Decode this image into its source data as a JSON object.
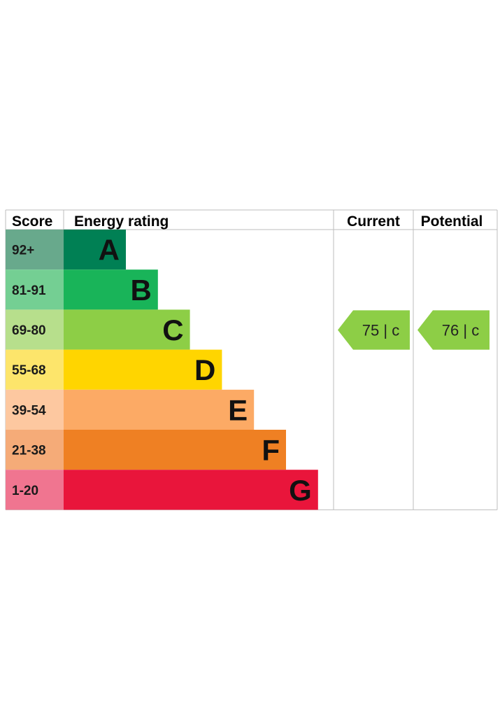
{
  "header": {
    "score": "Score",
    "rating": "Energy rating",
    "current": "Current",
    "potential": "Potential"
  },
  "chart_data": {
    "type": "bar",
    "bands": [
      {
        "letter": "A",
        "score": "92+",
        "color": "#008054",
        "light": "#68a98c"
      },
      {
        "letter": "B",
        "score": "81-91",
        "color": "#19b459",
        "light": "#74cf93"
      },
      {
        "letter": "C",
        "score": "69-80",
        "color": "#8dce46",
        "light": "#b7df8c"
      },
      {
        "letter": "D",
        "score": "55-68",
        "color": "#ffd500",
        "light": "#fde56b"
      },
      {
        "letter": "E",
        "score": "39-54",
        "color": "#fcaa65",
        "light": "#fdc8a0"
      },
      {
        "letter": "F",
        "score": "21-38",
        "color": "#ef8023",
        "light": "#f5ab78"
      },
      {
        "letter": "G",
        "score": "1-20",
        "color": "#e9153b",
        "light": "#f07590"
      }
    ],
    "current": {
      "value": 75,
      "band": "c",
      "text": "75 |  c",
      "color": "#8dce46"
    },
    "potential": {
      "value": 76,
      "band": "c",
      "text": "76 |  c",
      "color": "#8dce46"
    }
  }
}
